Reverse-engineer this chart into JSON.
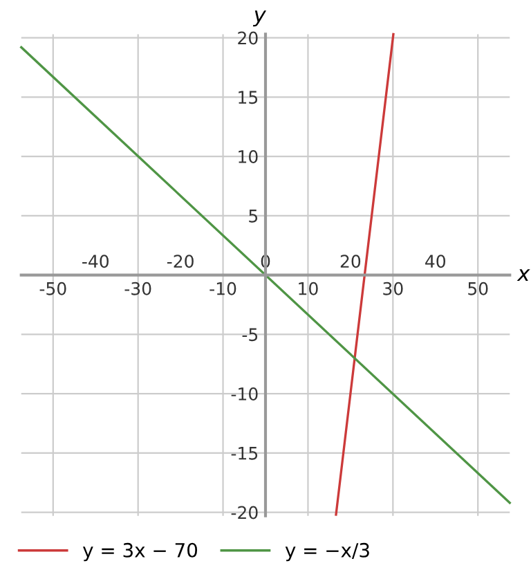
{
  "chart_data": {
    "type": "line",
    "xlabel": "x",
    "ylabel": "y",
    "xlim": [
      -57.5,
      57.5
    ],
    "ylim": [
      -20.3,
      20.3
    ],
    "xticks": [
      -50,
      -30,
      -10,
      10,
      30,
      50
    ],
    "x2lim": [
      -57.5,
      57.5
    ],
    "x2ticks": [
      -40,
      -20,
      0,
      20,
      40
    ],
    "yticks": [
      -20,
      -15,
      -10,
      -5,
      5,
      10,
      15,
      20
    ],
    "grid": true,
    "legend": "bottom left",
    "marker": "none",
    "line_style": "solid",
    "series": [
      {
        "name": "y = 3x − 70",
        "color": "#cc3a3a",
        "x": [
          16.6,
          30.1
        ],
        "values": [
          -20.2,
          20.3
        ]
      },
      {
        "name": "y = −x/3",
        "color": "#4f9545",
        "x": [
          -57.5,
          57.5
        ],
        "values": [
          19.2,
          -19.2
        ]
      }
    ]
  }
}
